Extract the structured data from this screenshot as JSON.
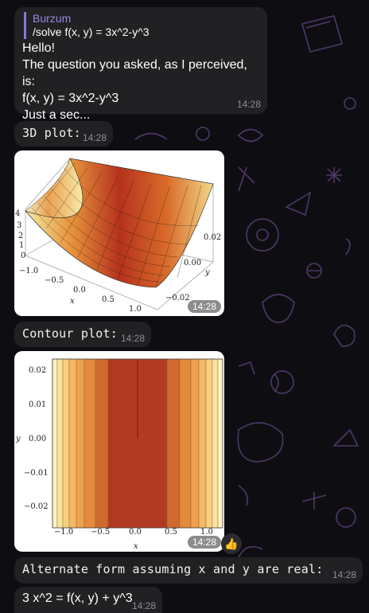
{
  "msg1": {
    "reply_author": "Burzum",
    "reply_text": "/solve f(x, y) = 3x^2-y^3",
    "lines": [
      "Hello!",
      "The question you asked, as I perceived, is:",
      "f(x, y) = 3x^2-y^3",
      "Just a sec..."
    ],
    "time": "14:28"
  },
  "msg2": {
    "text": "3D plot:",
    "time": "14:28"
  },
  "plot3d": {
    "time": "14:28",
    "z_ticks": [
      "4",
      "3",
      "2",
      "1",
      "0"
    ],
    "x_ticks": [
      "−1.0",
      "−0.5",
      "0.0",
      "0.5",
      "1.0"
    ],
    "y_ticks": [
      "0.02",
      "0.00",
      "−0.02"
    ],
    "x_label": "x",
    "y_label": "y"
  },
  "msg3": {
    "text": "Contour plot:",
    "time": "14:28"
  },
  "contour": {
    "time": "14:28",
    "y_ticks": [
      "0.02",
      "0.01",
      "0.00",
      "−0.01",
      "−0.02"
    ],
    "x_ticks": [
      "−1.0",
      "−0.5",
      "0.0",
      "0.5",
      "1.0"
    ],
    "x_label": "x",
    "y_label": "y",
    "reaction": "👍"
  },
  "msg4": {
    "text": "Alternate form assuming x and y are real:",
    "time": "14:28"
  },
  "msg5": {
    "text": "3 x^2 = f(x, y) + y^3",
    "time": "14:28"
  }
}
